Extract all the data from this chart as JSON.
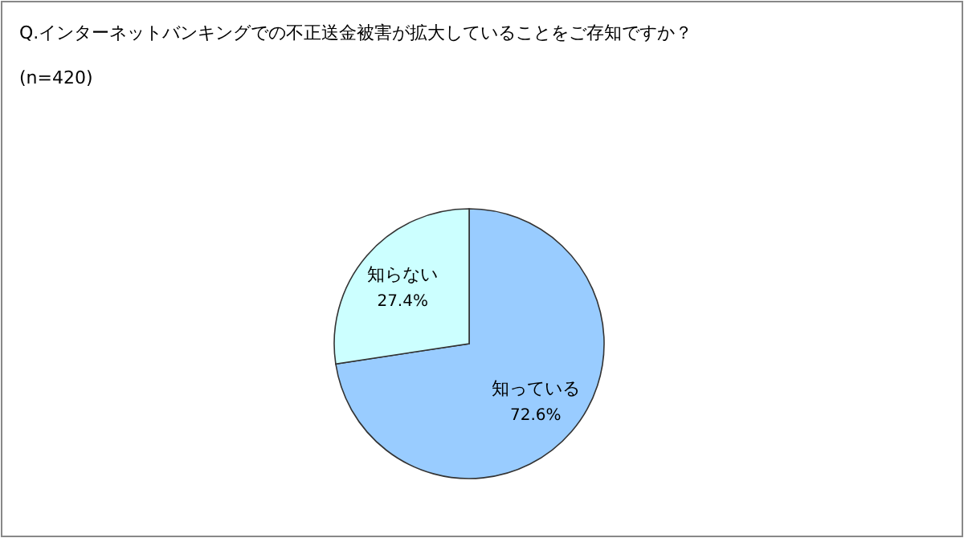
{
  "chart_data": {
    "type": "pie",
    "title": "Q.インターネットバンキングでの不正送金被害が拡大していることをご存知ですか？",
    "subtitle": "(n=420)",
    "categories": [
      "知っている",
      "知らない"
    ],
    "values": [
      72.6,
      27.4
    ],
    "value_labels": [
      "72.6%",
      "27.4%"
    ],
    "colors": [
      "#99ccff",
      "#ccffff"
    ]
  }
}
